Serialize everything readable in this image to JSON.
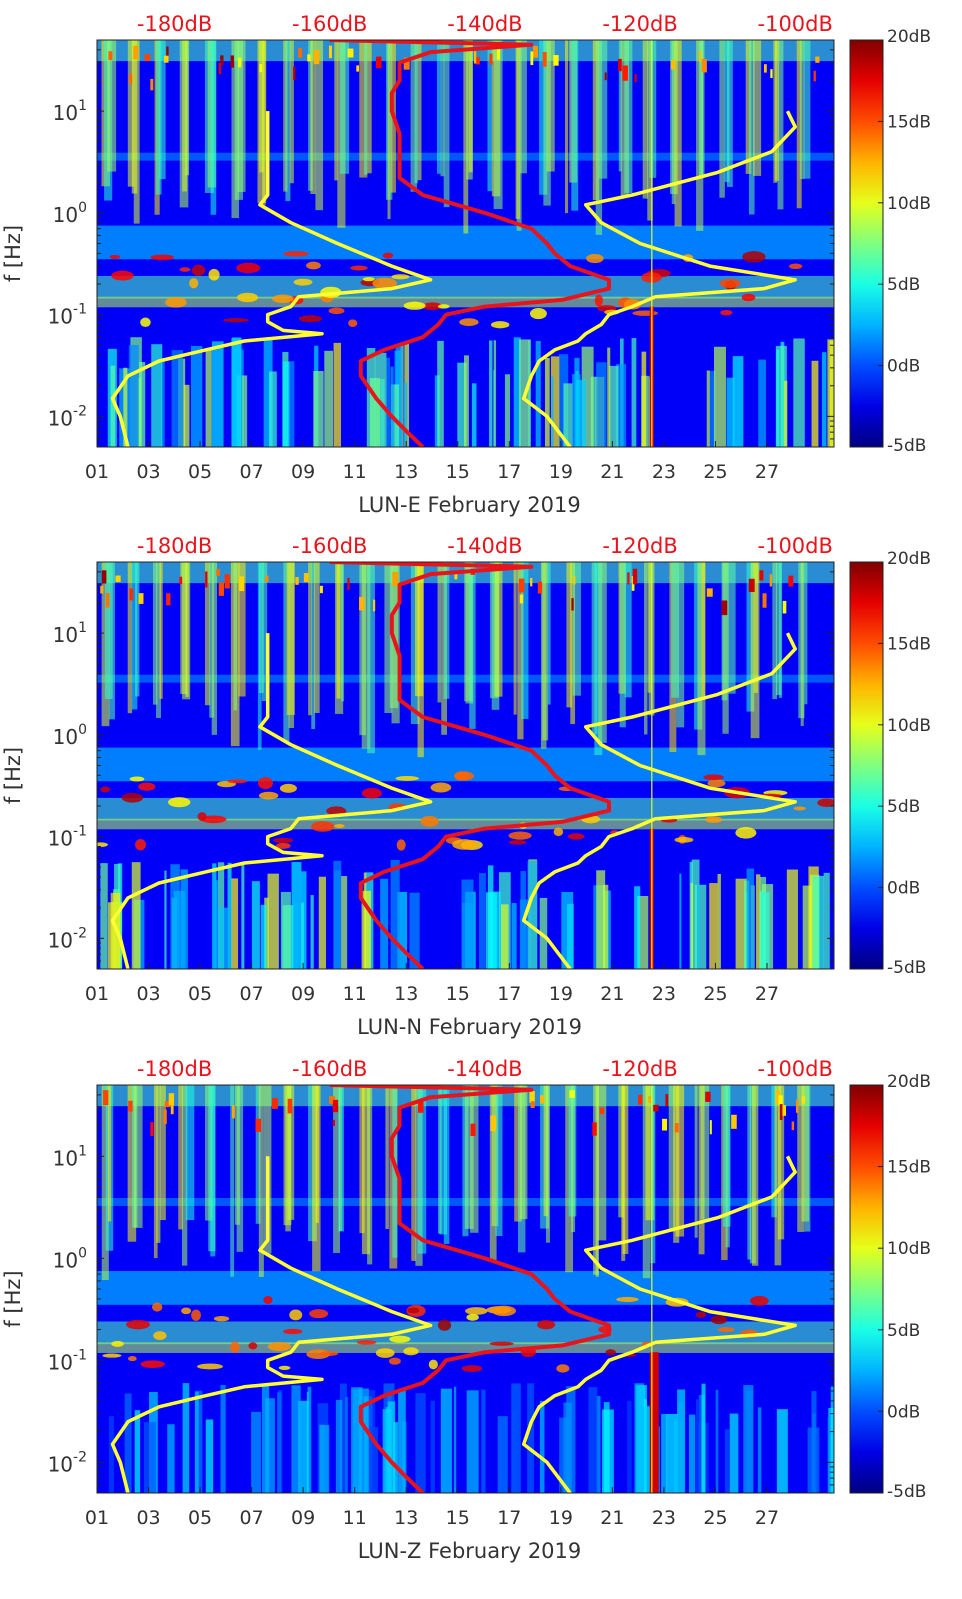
{
  "chart_data": [
    {
      "type": "heatmap",
      "title": "",
      "xlabel": "LUN-E February 2019",
      "ylabel": "f [Hz]",
      "x_ticks": [
        "01",
        "03",
        "05",
        "07",
        "09",
        "11",
        "13",
        "15",
        "17",
        "19",
        "21",
        "23",
        "25",
        "27"
      ],
      "y_ticks": [
        "10-2",
        "10-1",
        "100",
        "101"
      ],
      "y_tick_exponents": [
        "-2",
        "-1",
        "0",
        "1"
      ],
      "xlim_days": [
        1,
        29.6
      ],
      "ylim_hz": [
        0.005,
        50
      ],
      "top_axis_ticks": [
        "-180dB",
        "-160dB",
        "-140dB",
        "-120dB",
        "-100dB"
      ],
      "top_axis_range_db": [
        -190,
        -95
      ],
      "colorbar_ticks": [
        "20dB",
        "15dB",
        "10dB",
        "5dB",
        "0dB",
        "-5dB"
      ],
      "colorbar_range_db": [
        -5,
        20
      ],
      "series": [
        {
          "name": "station PSD (red)",
          "color": "#e8141c",
          "unit": "dB",
          "f": [
            50,
            45,
            38,
            30,
            25,
            20,
            15,
            10,
            6,
            4,
            3,
            2.2,
            1.5,
            1.0,
            0.7,
            0.5,
            0.4,
            0.3,
            0.22,
            0.18,
            0.14,
            0.12,
            0.1,
            0.08,
            0.06,
            0.045,
            0.035,
            0.025,
            0.015,
            0.01,
            0.007,
            0.005
          ],
          "db": [
            -160,
            -134,
            -147,
            -151,
            -151,
            -151,
            -152,
            -152,
            -151,
            -151,
            -151,
            -151,
            -148,
            -140,
            -134,
            -132,
            -131,
            -129,
            -124,
            -124,
            -130,
            -140,
            -145,
            -146,
            -148,
            -153,
            -156,
            -156,
            -154,
            -152,
            -150,
            -148
          ]
        },
        {
          "name": "high noise model (yellow)",
          "color": "#ffff33",
          "unit": "dB",
          "f": [
            10,
            7,
            4,
            2.5,
            1.5,
            1.2,
            0.8,
            0.5,
            0.3,
            0.22,
            0.18,
            0.15,
            0.12,
            0.1,
            0.08,
            0.065,
            0.055,
            0.045,
            0.035,
            0.025,
            0.015,
            0.01,
            0.005
          ],
          "db": [
            -101,
            -100,
            -103,
            -110,
            -121,
            -127,
            -125,
            -120,
            -111,
            -100,
            -104,
            -118,
            -121,
            -124,
            -125,
            -127,
            -128,
            -131,
            -133,
            -134,
            -135,
            -132,
            -129
          ]
        },
        {
          "name": "low noise model (yellow)",
          "color": "#ffff33",
          "unit": "dB",
          "f": [
            10,
            7,
            4,
            2.5,
            1.5,
            1.2,
            0.8,
            0.5,
            0.3,
            0.22,
            0.18,
            0.15,
            0.12,
            0.1,
            0.085,
            0.07,
            0.065,
            0.055,
            0.045,
            0.035,
            0.025,
            0.015,
            0.01,
            0.005
          ],
          "db": [
            -168,
            -168,
            -168,
            -168,
            -168,
            -169,
            -165,
            -159,
            -152,
            -147,
            -152,
            -164,
            -165,
            -168,
            -168,
            -166,
            -161,
            -171,
            -176,
            -182,
            -186,
            -188,
            -187,
            -186
          ]
        }
      ]
    },
    {
      "type": "heatmap",
      "title": "",
      "xlabel": "LUN-N February 2019",
      "ylabel": "f [Hz]",
      "x_ticks": [
        "01",
        "03",
        "05",
        "07",
        "09",
        "11",
        "13",
        "15",
        "17",
        "19",
        "21",
        "23",
        "25",
        "27"
      ],
      "y_ticks": [
        "10-2",
        "10-1",
        "100",
        "101"
      ],
      "y_tick_exponents": [
        "-2",
        "-1",
        "0",
        "1"
      ],
      "xlim_days": [
        1,
        29.6
      ],
      "ylim_hz": [
        0.005,
        50
      ],
      "top_axis_ticks": [
        "-180dB",
        "-160dB",
        "-140dB",
        "-120dB",
        "-100dB"
      ],
      "top_axis_range_db": [
        -190,
        -95
      ],
      "colorbar_ticks": [
        "20dB",
        "15dB",
        "10dB",
        "5dB",
        "0dB",
        "-5dB"
      ],
      "colorbar_range_db": [
        -5,
        20
      ],
      "series": [
        {
          "name": "station PSD (red)",
          "color": "#e8141c",
          "unit": "dB",
          "f": [
            50,
            45,
            38,
            30,
            25,
            20,
            15,
            10,
            6,
            4,
            3,
            2.2,
            1.5,
            1.0,
            0.7,
            0.5,
            0.4,
            0.3,
            0.22,
            0.18,
            0.14,
            0.12,
            0.1,
            0.08,
            0.06,
            0.045,
            0.035,
            0.025,
            0.015,
            0.01,
            0.007,
            0.005
          ],
          "db": [
            -160,
            -134,
            -147,
            -151,
            -151,
            -151,
            -152,
            -152,
            -151,
            -151,
            -151,
            -151,
            -148,
            -140,
            -134,
            -132,
            -131,
            -129,
            -124,
            -124,
            -130,
            -140,
            -145,
            -146,
            -148,
            -153,
            -156,
            -156,
            -154,
            -152,
            -150,
            -148
          ]
        },
        {
          "name": "high noise model (yellow)",
          "color": "#ffff33",
          "unit": "dB",
          "f": [
            10,
            7,
            4,
            2.5,
            1.5,
            1.2,
            0.8,
            0.5,
            0.3,
            0.22,
            0.18,
            0.15,
            0.12,
            0.1,
            0.08,
            0.065,
            0.055,
            0.045,
            0.035,
            0.025,
            0.015,
            0.01,
            0.005
          ],
          "db": [
            -101,
            -100,
            -103,
            -110,
            -121,
            -127,
            -125,
            -120,
            -111,
            -100,
            -104,
            -118,
            -121,
            -124,
            -125,
            -127,
            -128,
            -131,
            -133,
            -134,
            -135,
            -132,
            -129
          ]
        },
        {
          "name": "low noise model (yellow)",
          "color": "#ffff33",
          "unit": "dB",
          "f": [
            10,
            7,
            4,
            2.5,
            1.5,
            1.2,
            0.8,
            0.5,
            0.3,
            0.22,
            0.18,
            0.15,
            0.12,
            0.1,
            0.085,
            0.07,
            0.065,
            0.055,
            0.045,
            0.035,
            0.025,
            0.015,
            0.01,
            0.005
          ],
          "db": [
            -168,
            -168,
            -168,
            -168,
            -168,
            -169,
            -165,
            -159,
            -152,
            -147,
            -152,
            -164,
            -165,
            -168,
            -168,
            -166,
            -161,
            -171,
            -176,
            -182,
            -186,
            -188,
            -187,
            -186
          ]
        }
      ]
    },
    {
      "type": "heatmap",
      "title": "",
      "xlabel": "LUN-Z February 2019",
      "ylabel": "f [Hz]",
      "x_ticks": [
        "01",
        "03",
        "05",
        "07",
        "09",
        "11",
        "13",
        "15",
        "17",
        "19",
        "21",
        "23",
        "25",
        "27"
      ],
      "y_ticks": [
        "10-2",
        "10-1",
        "100",
        "101"
      ],
      "y_tick_exponents": [
        "-2",
        "-1",
        "0",
        "1"
      ],
      "xlim_days": [
        1,
        29.6
      ],
      "ylim_hz": [
        0.005,
        50
      ],
      "top_axis_ticks": [
        "-180dB",
        "-160dB",
        "-140dB",
        "-120dB",
        "-100dB"
      ],
      "top_axis_range_db": [
        -190,
        -95
      ],
      "colorbar_ticks": [
        "20dB",
        "15dB",
        "10dB",
        "5dB",
        "0dB",
        "-5dB"
      ],
      "colorbar_range_db": [
        -5,
        20
      ],
      "series": [
        {
          "name": "station PSD (red)",
          "color": "#e8141c",
          "unit": "dB",
          "f": [
            50,
            45,
            38,
            30,
            25,
            20,
            15,
            10,
            6,
            4,
            3,
            2.2,
            1.5,
            1.0,
            0.7,
            0.5,
            0.4,
            0.3,
            0.22,
            0.18,
            0.14,
            0.12,
            0.1,
            0.08,
            0.06,
            0.045,
            0.035,
            0.025,
            0.015,
            0.01,
            0.007,
            0.005
          ],
          "db": [
            -160,
            -134,
            -147,
            -151,
            -151,
            -151,
            -152,
            -152,
            -151,
            -151,
            -151,
            -151,
            -148,
            -140,
            -134,
            -132,
            -131,
            -129,
            -124,
            -124,
            -130,
            -140,
            -145,
            -146,
            -148,
            -153,
            -156,
            -156,
            -154,
            -152,
            -150,
            -148
          ]
        },
        {
          "name": "high noise model (yellow)",
          "color": "#ffff33",
          "unit": "dB",
          "f": [
            10,
            7,
            4,
            2.5,
            1.5,
            1.2,
            0.8,
            0.5,
            0.3,
            0.22,
            0.18,
            0.15,
            0.12,
            0.1,
            0.08,
            0.065,
            0.055,
            0.045,
            0.035,
            0.025,
            0.015,
            0.01,
            0.005
          ],
          "db": [
            -101,
            -100,
            -103,
            -110,
            -121,
            -127,
            -125,
            -120,
            -111,
            -100,
            -104,
            -118,
            -121,
            -124,
            -125,
            -127,
            -128,
            -131,
            -133,
            -134,
            -135,
            -132,
            -129
          ]
        },
        {
          "name": "low noise model (yellow)",
          "color": "#ffff33",
          "unit": "dB",
          "f": [
            10,
            7,
            4,
            2.5,
            1.5,
            1.2,
            0.8,
            0.5,
            0.3,
            0.22,
            0.18,
            0.15,
            0.12,
            0.1,
            0.085,
            0.07,
            0.065,
            0.055,
            0.045,
            0.035,
            0.025,
            0.015,
            0.01,
            0.005
          ],
          "db": [
            -168,
            -168,
            -168,
            -168,
            -168,
            -169,
            -165,
            -159,
            -152,
            -147,
            -152,
            -164,
            -165,
            -168,
            -168,
            -166,
            -161,
            -171,
            -176,
            -182,
            -186,
            -188,
            -187,
            -186
          ]
        }
      ]
    }
  ]
}
